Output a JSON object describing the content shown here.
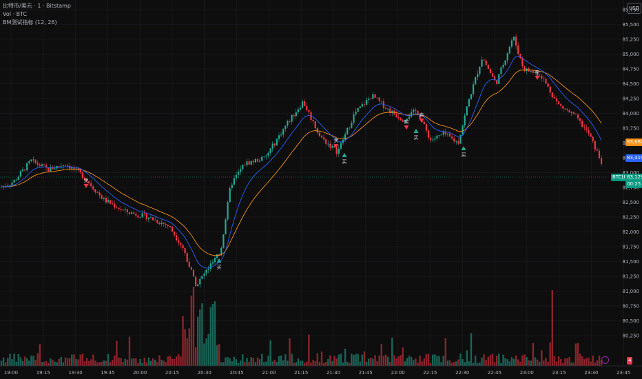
{
  "legend": {
    "symbol_line": "比特币/美元 · 1 · Bitstamp",
    "volume_line": "Vol · BTC",
    "indicator_line": "BM测试指标 (12, 26)"
  },
  "currency_button": "USD",
  "price_axis": {
    "ticks": [
      "85,750",
      "85,500",
      "85,250",
      "85,000",
      "84,750",
      "84,500",
      "84,250",
      "84,000",
      "83,750",
      "83,500",
      "83,250",
      "83,000",
      "82,750",
      "82,500",
      "82,250",
      "82,000",
      "81,750",
      "81,500",
      "81,250",
      "81,000",
      "80,750",
      "80,500",
      "80,250"
    ]
  },
  "time_axis": {
    "ticks": [
      "19:00",
      "19:15",
      "19:30",
      "19:45",
      "20:00",
      "20:15",
      "20:30",
      "20:45",
      "21:00",
      "21:15",
      "21:30",
      "21:45",
      "22:00",
      "22:15",
      "22:30",
      "22:45",
      "23:00",
      "23:15",
      "23:30",
      "23:45"
    ]
  },
  "price_tags": {
    "slow_ma": {
      "label": "83,692",
      "color": "#f7931a"
    },
    "fast_ma": {
      "label": "83,419",
      "color": "#2962ff"
    },
    "symbol": {
      "label": "BTCUSD",
      "color": "#089981"
    },
    "last_price": {
      "label": "83,129",
      "color": "#089981"
    },
    "countdown": {
      "label": "00:25",
      "color": "#089981"
    }
  },
  "volume_badge": "4",
  "signals": {
    "sell_label": "卖",
    "buy_label": "买"
  },
  "colors": {
    "up": "#22ab94",
    "down": "#f23645",
    "fast_ma": "#2962ff",
    "slow_ma": "#f7931a"
  }
}
